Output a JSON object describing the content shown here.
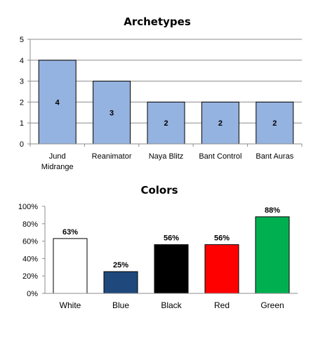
{
  "chart_data": [
    {
      "type": "bar",
      "title": "Archetypes",
      "xlabel": "",
      "ylabel": "",
      "categories": [
        "Jund Midrange",
        "Reanimator",
        "Naya Blitz",
        "Bant Control",
        "Bant Auras"
      ],
      "category_lines": [
        [
          "Jund",
          "Midrange"
        ],
        [
          "Reanimator"
        ],
        [
          "Naya Blitz"
        ],
        [
          "Bant Control"
        ],
        [
          "Bant Auras"
        ]
      ],
      "values": [
        4,
        3,
        2,
        2,
        2
      ],
      "data_labels": [
        "4",
        "3",
        "2",
        "2",
        "2"
      ],
      "ylim": [
        0,
        5
      ],
      "yticks": [
        "0",
        "1",
        "2",
        "3",
        "4",
        "5"
      ],
      "bar_color": "#95b3e0",
      "grid": true,
      "legend": "none"
    },
    {
      "type": "bar",
      "title": "Colors",
      "xlabel": "",
      "ylabel": "",
      "categories": [
        "White",
        "Blue",
        "Black",
        "Red",
        "Green"
      ],
      "values": [
        63,
        25,
        56,
        56,
        88
      ],
      "data_labels": [
        "63%",
        "25%",
        "56%",
        "56%",
        "88%"
      ],
      "bar_colors": [
        "#ffffff",
        "#1f497d",
        "#000000",
        "#ff0000",
        "#00b050"
      ],
      "ylim": [
        0,
        100
      ],
      "yticks": [
        "0%",
        "20%",
        "40%",
        "60%",
        "80%",
        "100%"
      ],
      "grid": false,
      "legend": "none"
    }
  ]
}
